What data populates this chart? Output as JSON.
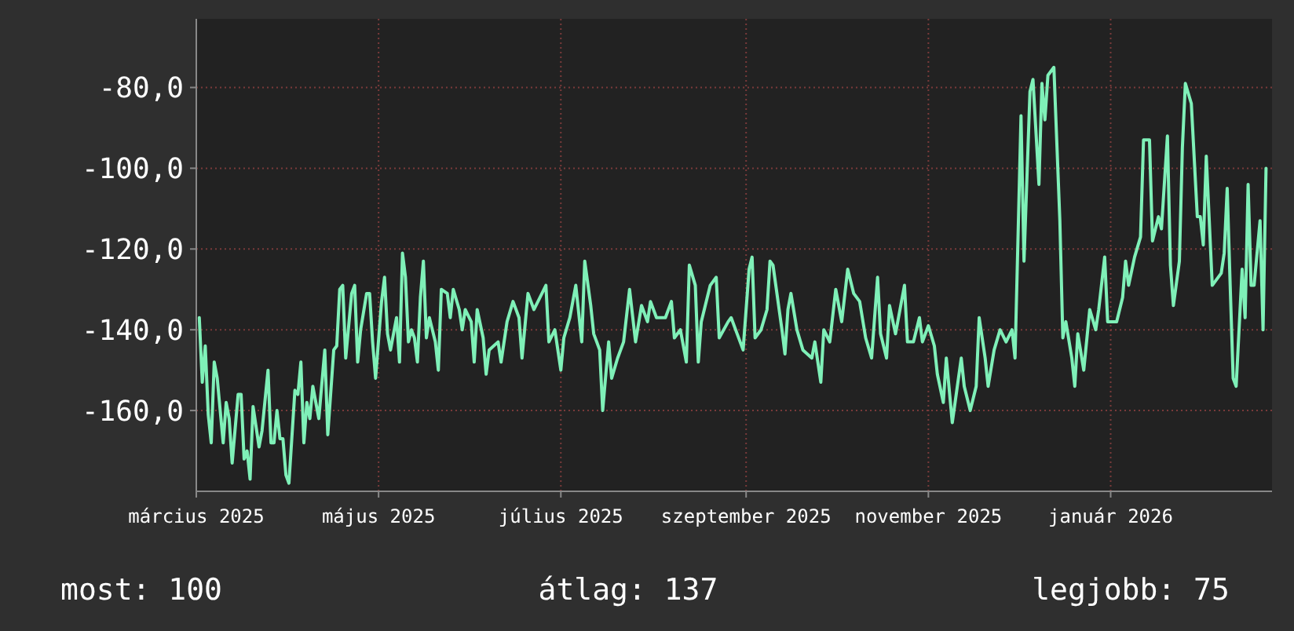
{
  "chart_data": {
    "type": "line",
    "x": [
      "2025-03-02",
      "2025-03-03",
      "2025-03-04",
      "2025-03-05",
      "2025-03-06",
      "2025-03-07",
      "2025-03-08",
      "2025-03-10",
      "2025-03-11",
      "2025-03-12",
      "2025-03-13",
      "2025-03-15",
      "2025-03-16",
      "2025-03-17",
      "2025-03-18",
      "2025-03-19",
      "2025-03-20",
      "2025-03-22",
      "2025-03-23",
      "2025-03-25",
      "2025-03-26",
      "2025-03-27",
      "2025-03-28",
      "2025-03-29",
      "2025-03-30",
      "2025-03-31",
      "2025-04-01",
      "2025-04-03",
      "2025-04-04",
      "2025-04-05",
      "2025-04-06",
      "2025-04-07",
      "2025-04-08",
      "2025-04-09",
      "2025-04-11",
      "2025-04-13",
      "2025-04-14",
      "2025-04-16",
      "2025-04-17",
      "2025-04-18",
      "2025-04-19",
      "2025-04-20",
      "2025-04-22",
      "2025-04-23",
      "2025-04-24",
      "2025-04-25",
      "2025-04-27",
      "2025-04-28",
      "2025-04-29",
      "2025-04-30",
      "2025-05-02",
      "2025-05-03",
      "2025-05-04",
      "2025-05-05",
      "2025-05-07",
      "2025-05-08",
      "2025-05-09",
      "2025-05-10",
      "2025-05-11",
      "2025-05-12",
      "2025-05-13",
      "2025-05-14",
      "2025-05-15",
      "2025-05-16",
      "2025-05-17",
      "2025-05-18",
      "2025-05-20",
      "2025-05-21",
      "2025-05-22",
      "2025-05-24",
      "2025-05-25",
      "2025-05-26",
      "2025-05-28",
      "2025-05-29",
      "2025-05-30",
      "2025-06-01",
      "2025-06-02",
      "2025-06-03",
      "2025-06-05",
      "2025-06-06",
      "2025-06-07",
      "2025-06-10",
      "2025-06-11",
      "2025-06-13",
      "2025-06-15",
      "2025-06-17",
      "2025-06-18",
      "2025-06-20",
      "2025-06-22",
      "2025-06-24",
      "2025-06-26",
      "2025-06-27",
      "2025-06-29",
      "2025-07-01",
      "2025-07-02",
      "2025-07-04",
      "2025-07-06",
      "2025-07-08",
      "2025-07-09",
      "2025-07-11",
      "2025-07-12",
      "2025-07-14",
      "2025-07-15",
      "2025-07-17",
      "2025-07-18",
      "2025-07-20",
      "2025-07-22",
      "2025-07-24",
      "2025-07-26",
      "2025-07-28",
      "2025-07-30",
      "2025-07-31",
      "2025-08-02",
      "2025-08-05",
      "2025-08-07",
      "2025-08-08",
      "2025-08-10",
      "2025-08-12",
      "2025-08-13",
      "2025-08-15",
      "2025-08-16",
      "2025-08-17",
      "2025-08-20",
      "2025-08-22",
      "2025-08-23",
      "2025-08-26",
      "2025-08-27",
      "2025-08-29",
      "2025-08-31",
      "2025-09-02",
      "2025-09-03",
      "2025-09-04",
      "2025-09-06",
      "2025-09-08",
      "2025-09-09",
      "2025-09-10",
      "2025-09-13",
      "2025-09-14",
      "2025-09-15",
      "2025-09-16",
      "2025-09-18",
      "2025-09-20",
      "2025-09-23",
      "2025-09-24",
      "2025-09-26",
      "2025-09-27",
      "2025-09-29",
      "2025-10-01",
      "2025-10-03",
      "2025-10-05",
      "2025-10-07",
      "2025-10-09",
      "2025-10-11",
      "2025-10-13",
      "2025-10-15",
      "2025-10-16",
      "2025-10-18",
      "2025-10-19",
      "2025-10-21",
      "2025-10-24",
      "2025-10-25",
      "2025-10-27",
      "2025-10-29",
      "2025-10-30",
      "2025-11-01",
      "2025-11-03",
      "2025-11-04",
      "2025-11-06",
      "2025-11-07",
      "2025-11-09",
      "2025-11-12",
      "2025-11-13",
      "2025-11-15",
      "2025-11-17",
      "2025-11-18",
      "2025-11-20",
      "2025-11-21",
      "2025-11-23",
      "2025-11-25",
      "2025-11-27",
      "2025-11-29",
      "2025-11-30",
      "2025-12-02",
      "2025-12-03",
      "2025-12-05",
      "2025-12-06",
      "2025-12-08",
      "2025-12-09",
      "2025-12-10",
      "2025-12-11",
      "2025-12-13",
      "2025-12-15",
      "2025-12-16",
      "2025-12-17",
      "2025-12-19",
      "2025-12-20",
      "2025-12-21",
      "2025-12-23",
      "2025-12-25",
      "2025-12-27",
      "2025-12-28",
      "2025-12-30",
      "2025-12-31",
      "2026-01-03",
      "2026-01-05",
      "2026-01-06",
      "2026-01-07",
      "2026-01-09",
      "2026-01-11",
      "2026-01-12",
      "2026-01-14",
      "2026-01-15",
      "2026-01-17",
      "2026-01-18",
      "2026-01-20",
      "2026-01-21",
      "2026-01-22",
      "2026-01-24",
      "2026-01-25",
      "2026-01-26",
      "2026-01-28",
      "2026-01-30",
      "2026-01-31",
      "2026-02-01",
      "2026-02-02",
      "2026-02-04",
      "2026-02-07",
      "2026-02-08",
      "2026-02-09",
      "2026-02-10",
      "2026-02-11",
      "2026-02-12",
      "2026-02-14",
      "2026-02-15",
      "2026-02-16",
      "2026-02-17",
      "2026-02-18",
      "2026-02-20",
      "2026-02-21",
      "2026-02-22"
    ],
    "series": [
      {
        "color": "#7ff0b8",
        "values": [
          -137,
          -153,
          -144,
          -161,
          -168,
          -148,
          -152,
          -168,
          -158,
          -162,
          -173,
          -156,
          -156,
          -172,
          -170,
          -177,
          -159,
          -169,
          -165,
          -150,
          -168,
          -168,
          -160,
          -167,
          -167,
          -176,
          -178,
          -155,
          -156,
          -148,
          -168,
          -158,
          -162,
          -154,
          -162,
          -145,
          -166,
          -145,
          -144,
          -130,
          -129,
          -147,
          -131,
          -129,
          -148,
          -140,
          -131,
          -131,
          -143,
          -152,
          -133,
          -127,
          -141,
          -145,
          -137,
          -148,
          -121,
          -127,
          -143,
          -140,
          -142,
          -148,
          -132,
          -123,
          -142,
          -137,
          -143,
          -150,
          -130,
          -131,
          -137,
          -130,
          -135,
          -140,
          -135,
          -138,
          -148,
          -135,
          -142,
          -151,
          -145,
          -143,
          -148,
          -138,
          -133,
          -137,
          -147,
          -131,
          -135,
          -132,
          -129,
          -143,
          -140,
          -150,
          -142,
          -137,
          -129,
          -143,
          -123,
          -134,
          -141,
          -145,
          -160,
          -143,
          -152,
          -147,
          -143,
          -130,
          -143,
          -134,
          -138,
          -133,
          -137,
          -137,
          -133,
          -142,
          -140,
          -148,
          -124,
          -129,
          -148,
          -138,
          -129,
          -127,
          -142,
          -138,
          -137,
          -141,
          -145,
          -125,
          -122,
          -142,
          -140,
          -135,
          -123,
          -124,
          -140,
          -146,
          -135,
          -131,
          -140,
          -145,
          -147,
          -143,
          -153,
          -140,
          -143,
          -130,
          -138,
          -125,
          -131,
          -133,
          -142,
          -147,
          -127,
          -141,
          -147,
          -134,
          -141,
          -129,
          -143,
          -143,
          -137,
          -143,
          -139,
          -144,
          -151,
          -158,
          -147,
          -163,
          -147,
          -154,
          -160,
          -154,
          -137,
          -147,
          -154,
          -145,
          -140,
          -143,
          -140,
          -147,
          -87,
          -123,
          -81,
          -78,
          -104,
          -79,
          -88,
          -77,
          -75,
          -113,
          -142,
          -138,
          -147,
          -154,
          -141,
          -150,
          -135,
          -140,
          -135,
          -122,
          -138,
          -138,
          -132,
          -123,
          -129,
          -122,
          -117,
          -93,
          -93,
          -118,
          -112,
          -115,
          -92,
          -124,
          -134,
          -123,
          -95,
          -79,
          -84,
          -112,
          -112,
          -119,
          -97,
          -129,
          -126,
          -121,
          -105,
          -129,
          -152,
          -154,
          -125,
          -137,
          -104,
          -129,
          -129,
          -113,
          -140,
          -100
        ]
      }
    ],
    "xlim": [
      "2025-03-01",
      "2026-02-24"
    ],
    "xticks": [
      {
        "value": "2025-03-01",
        "label": "március 2025"
      },
      {
        "value": "2025-05-01",
        "label": "május 2025"
      },
      {
        "value": "2025-07-01",
        "label": "július 2025"
      },
      {
        "value": "2025-09-01",
        "label": "szeptember 2025"
      },
      {
        "value": "2025-11-01",
        "label": "november 2025"
      },
      {
        "value": "2026-01-01",
        "label": "január 2026"
      }
    ],
    "ylim": [
      -180,
      -63
    ],
    "yticks": [
      {
        "value": -160,
        "label": "-160,0"
      },
      {
        "value": -140,
        "label": "-140,0"
      },
      {
        "value": -120,
        "label": "-120,0"
      },
      {
        "value": -100,
        "label": "-100,0"
      },
      {
        "value": -80,
        "label": "-80,0"
      }
    ],
    "grid": true,
    "annotations": [
      "most: 100",
      "átlag: 137",
      "legjobb: 75"
    ]
  }
}
